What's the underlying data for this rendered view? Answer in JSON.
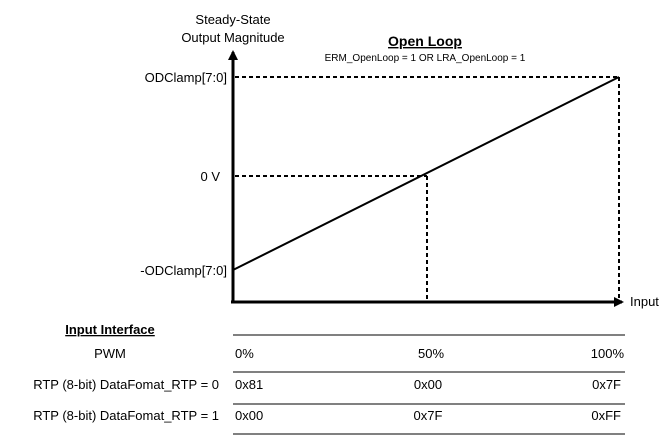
{
  "y_axis_label": [
    "Steady-State",
    "Output Magnitude"
  ],
  "title": "Open Loop",
  "subtitle": "ERM_OpenLoop = 1 OR LRA_OpenLoop = 1",
  "x_axis_label": "Input",
  "y_ticks": [
    "ODClamp[7:0]",
    "0 V",
    "-ODClamp[7:0]"
  ],
  "input_interface": {
    "heading": "Input Interface",
    "rows": [
      {
        "label": "PWM",
        "values": [
          "0%",
          "50%",
          "100%"
        ]
      },
      {
        "label": "RTP (8-bit) DataFomat_RTP = 0",
        "values": [
          "0x81",
          "0x00",
          "0x7F"
        ]
      },
      {
        "label": "RTP (8-bit) DataFomat_RTP = 1",
        "values": [
          "0x00",
          "0x7F",
          "0xFF"
        ]
      }
    ]
  },
  "chart_data": {
    "type": "line",
    "title": "Open Loop",
    "subtitle": "ERM_OpenLoop = 1 OR LRA_OpenLoop = 1",
    "xlabel": "Input",
    "ylabel": "Steady-State Output Magnitude",
    "x_ticks": [
      "0%",
      "50%",
      "100%"
    ],
    "y_ticks": [
      "-ODClamp[7:0]",
      "0 V",
      "ODClamp[7:0]"
    ],
    "series": [
      {
        "x": [
          0,
          50,
          100
        ],
        "y": [
          -1,
          0,
          1
        ]
      }
    ],
    "reference_lines": "dashed"
  }
}
